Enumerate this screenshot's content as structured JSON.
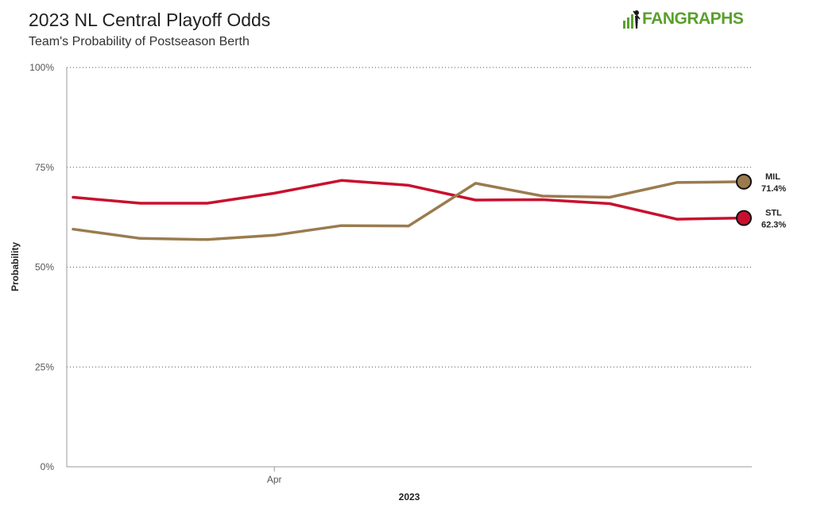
{
  "header": {
    "title": "2023 NL Central Playoff Odds",
    "subtitle": "Team's Probability of Postseason Berth",
    "logo_text": "FANGRAPHS",
    "logo_color": "#5aa02c"
  },
  "chart_data": {
    "type": "line",
    "title": "2023 NL Central Playoff Odds",
    "subtitle": "Team's Probability of Postseason Berth",
    "xlabel": "2023",
    "ylabel": "Probability",
    "ylim": [
      0,
      100
    ],
    "yticks": [
      "0%",
      "25%",
      "50%",
      "75%",
      "100%"
    ],
    "ytick_values": [
      0,
      25,
      50,
      75,
      100
    ],
    "x_index_range": [
      0,
      10
    ],
    "xticks": [
      {
        "index": 3,
        "label": "Apr"
      }
    ],
    "grid": "horizontal dotted",
    "series": [
      {
        "name": "STL",
        "color": "#c8102e",
        "values": [
          67.5,
          66.0,
          66.0,
          68.5,
          71.7,
          70.5,
          66.8,
          66.9,
          65.9,
          62.0,
          62.3
        ],
        "end_label": "62.3%"
      },
      {
        "name": "MIL",
        "color": "#9a7b4f",
        "values": [
          59.5,
          57.2,
          56.9,
          58.0,
          60.4,
          60.3,
          71.0,
          67.8,
          67.5,
          71.2,
          71.4
        ],
        "end_label": "71.4%"
      }
    ]
  }
}
